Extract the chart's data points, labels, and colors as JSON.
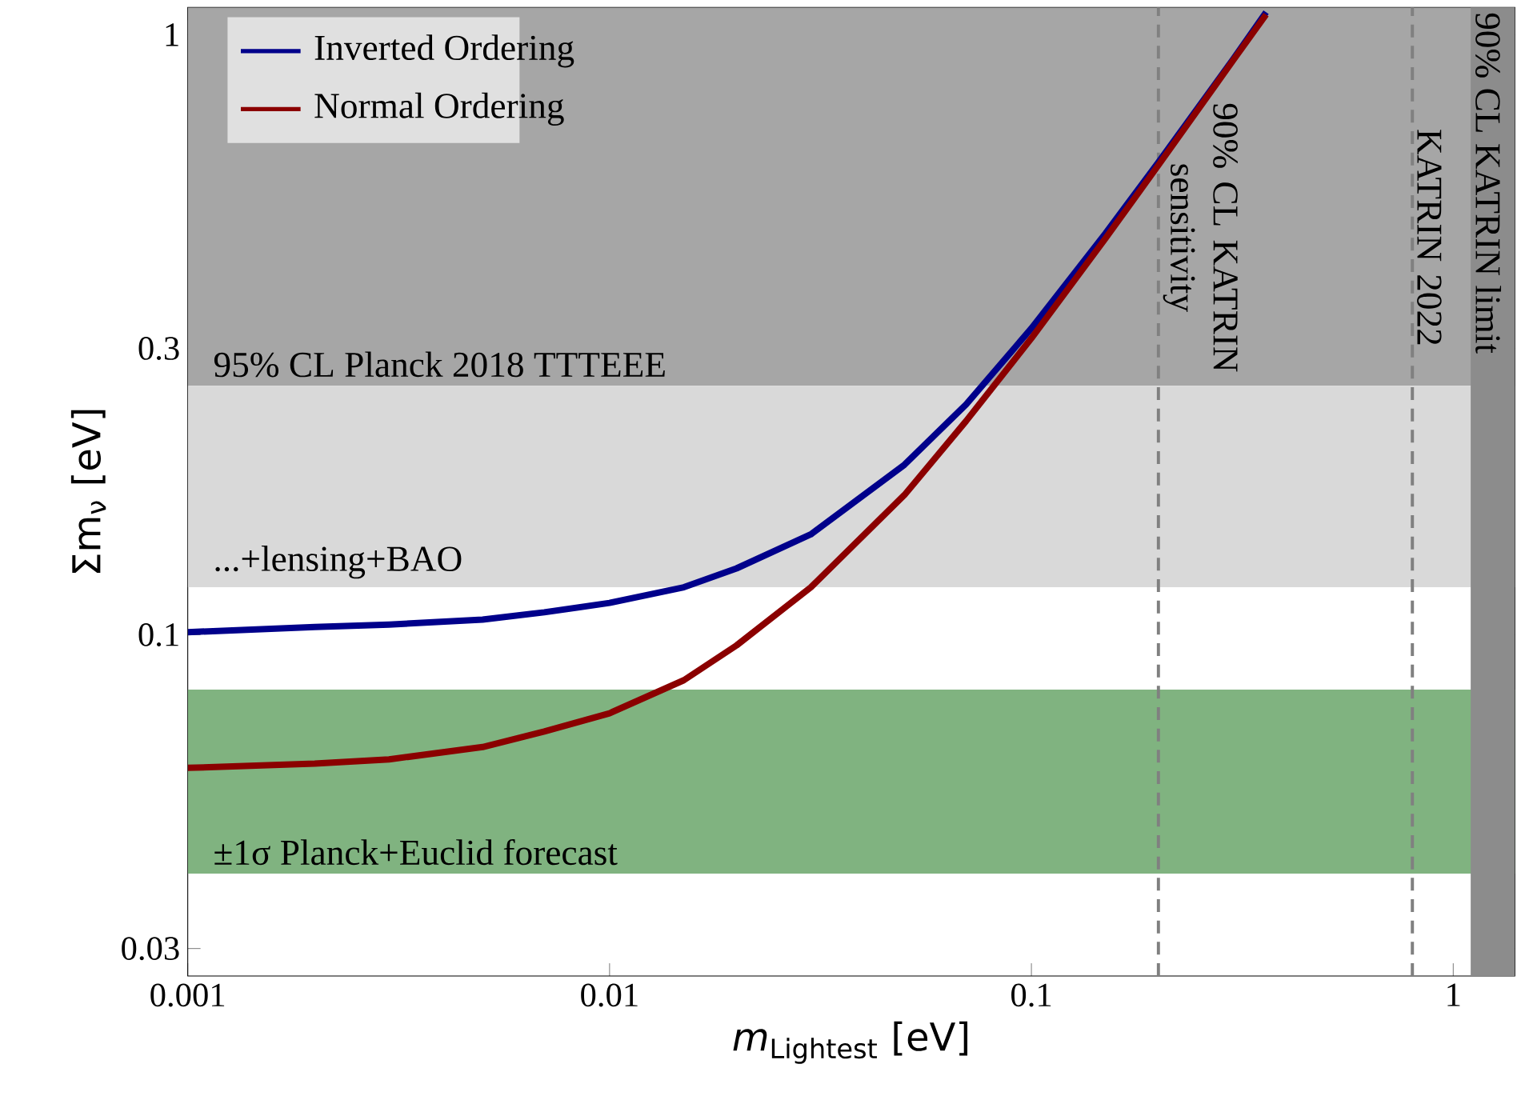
{
  "chart_data": {
    "type": "line",
    "xlabel": "*m*$_{Lightest}$ [eV]",
    "ylabel": "Σm$_{ν}$ [eV]",
    "log": "xy",
    "xlim": [
      0.001,
      1.4
    ],
    "ylim": [
      0.027,
      1.11
    ],
    "xticks": [
      0.001,
      0.01,
      0.1,
      1
    ],
    "yticks": [
      0.03,
      0.1,
      0.3,
      1
    ],
    "grid": false,
    "legend": "top left",
    "marker": "none",
    "line_style": "solid",
    "x": [
      0.001,
      0.002,
      0.003,
      0.005,
      0.007,
      0.01,
      0.015,
      0.02,
      0.03,
      0.05,
      0.07,
      0.1,
      0.15,
      0.2,
      0.3,
      0.36
    ],
    "series": [
      {
        "name": "Inverted Ordering",
        "color": "#00008b",
        "values": [
          0.101,
          0.103,
          0.104,
          0.106,
          0.109,
          0.113,
          0.12,
          0.129,
          0.147,
          0.192,
          0.242,
          0.324,
          0.467,
          0.613,
          0.908,
          1.09
        ]
      },
      {
        "name": "Normal Ordering",
        "color": "#8b0000",
        "values": [
          0.06,
          0.061,
          0.062,
          0.065,
          0.069,
          0.074,
          0.084,
          0.096,
          0.12,
          0.171,
          0.227,
          0.312,
          0.458,
          0.606,
          0.904,
          1.08
        ]
      }
    ],
    "bands": [
      {
        "axis": "y",
        "from": 0.26,
        "to": 1.11,
        "label": "95% CL Planck 2018 TTTEEE",
        "color": "#a6a6a6"
      },
      {
        "axis": "y",
        "from": 0.12,
        "to": 0.26,
        "label": "...+lensing+BAO",
        "color": "#d9d9d9"
      },
      {
        "axis": "y",
        "from": 0.04,
        "to": 0.081,
        "label": "±1σ Planck+Euclid forecast",
        "color": "#80b380"
      },
      {
        "axis": "x",
        "from": 1.1,
        "to": 1.4,
        "label": "90% CL KATRIN limit",
        "color": "#8c8c8c"
      }
    ],
    "ref_lines": [
      {
        "axis": "x",
        "value": 0.2,
        "label": "90% CL KATRIN sensitivity",
        "color": "#808080",
        "line_style": "dashed"
      },
      {
        "axis": "x",
        "value": 0.8,
        "label": "KATRIN 2022",
        "color": "#808080",
        "line_style": "dashed"
      }
    ]
  }
}
